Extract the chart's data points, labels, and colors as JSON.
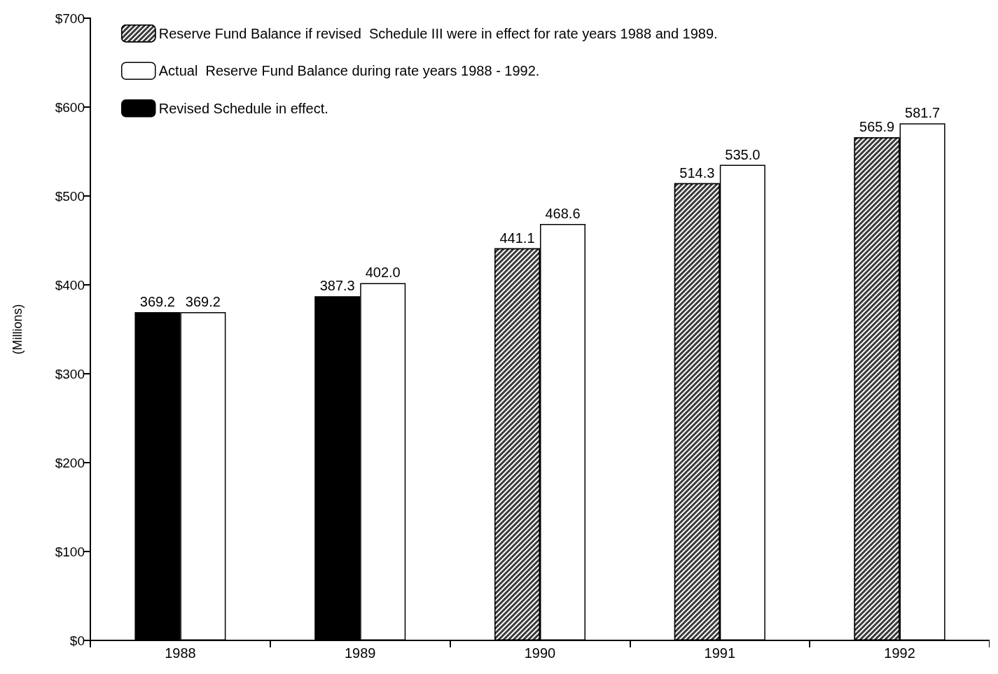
{
  "chart_data": {
    "type": "bar",
    "ylabel": "(Millions)",
    "categories": [
      "1988",
      "1989",
      "1990",
      "1991",
      "1992"
    ],
    "series": [
      {
        "name": "Reserve Fund Balance if revised  Schedule III were in effect for rate years 1988 and 1989.",
        "color": "#3a3a3a",
        "values": [
          null,
          null,
          441.1,
          514.3,
          565.9
        ],
        "value_labels": [
          null,
          null,
          "441.1",
          "514.3",
          "565.9"
        ]
      },
      {
        "name": "Actual  Reserve Fund Balance during rate years 1988 - 1992.",
        "color": "#ffffff",
        "values": [
          369.2,
          402.0,
          468.6,
          535.0,
          581.7
        ],
        "value_labels": [
          "369.2",
          "402.0",
          "468.6",
          "535.0",
          "581.7"
        ]
      },
      {
        "name": "Revised Schedule in effect.",
        "color": "#000000",
        "values": [
          369.2,
          387.3,
          null,
          null,
          null
        ],
        "value_labels": [
          "369.2",
          "387.3",
          null,
          null,
          null
        ]
      }
    ],
    "ylim": [
      0,
      700
    ],
    "yticks": [
      {
        "value": 0,
        "label": "$0"
      },
      {
        "value": 100,
        "label": "$100"
      },
      {
        "value": 200,
        "label": "$200"
      },
      {
        "value": 300,
        "label": "$300"
      },
      {
        "value": 400,
        "label": "$400"
      },
      {
        "value": 500,
        "label": "$500"
      },
      {
        "value": 600,
        "label": "$600"
      },
      {
        "value": 700,
        "label": "$700"
      }
    ],
    "grid": false,
    "legend": "top left"
  }
}
